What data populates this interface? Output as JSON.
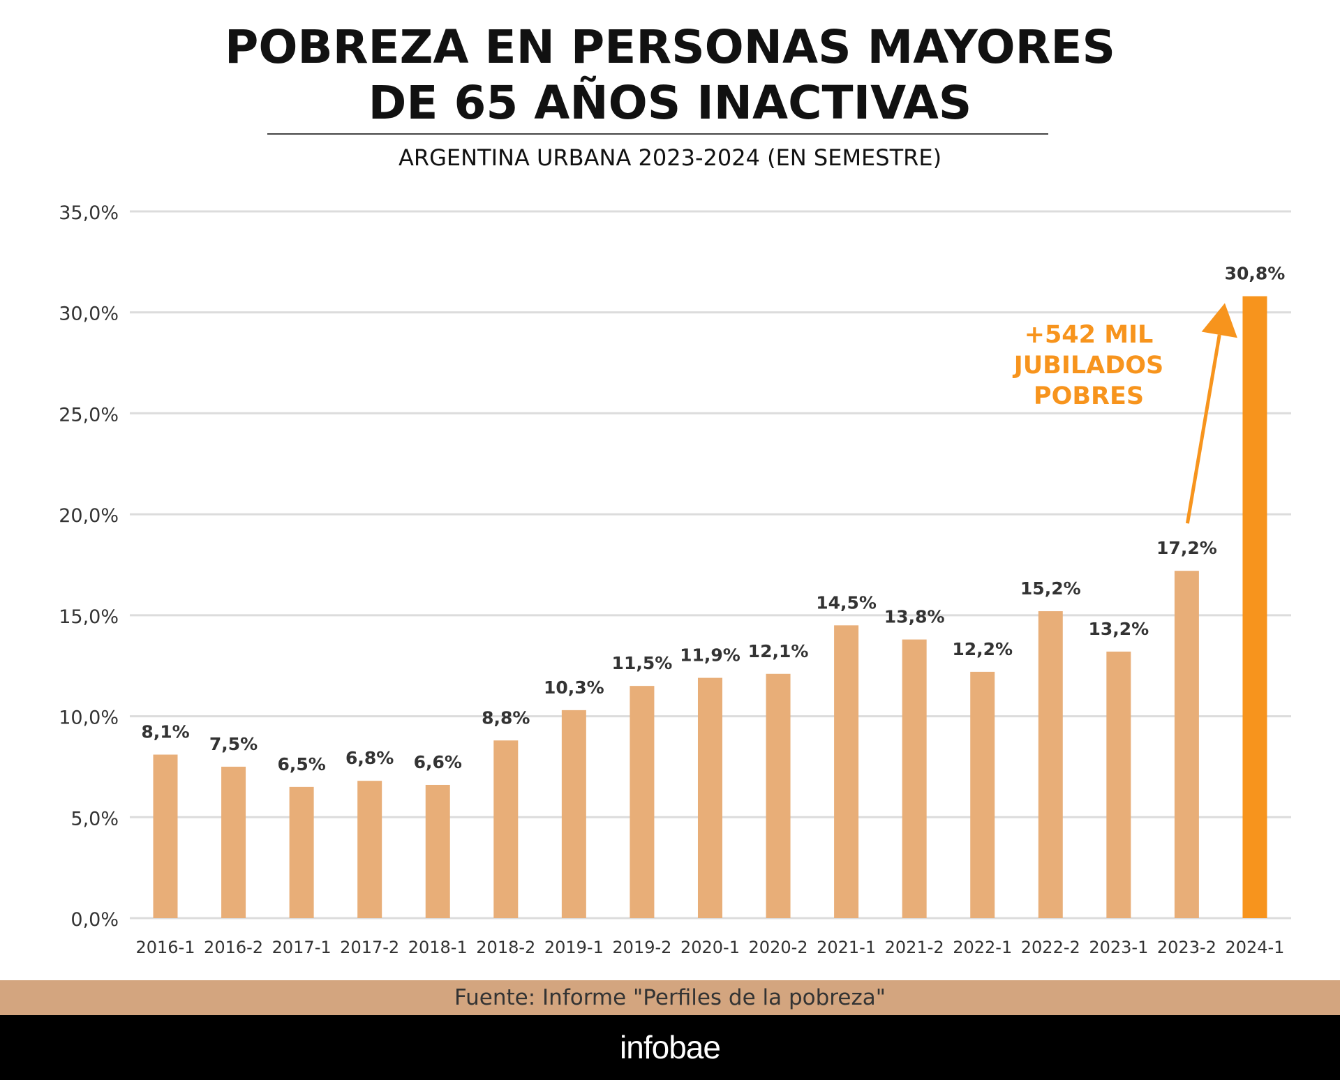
{
  "header": {
    "title_lines": [
      "POBREZA EN PERSONAS MAYORES",
      "DE 65 AÑOS INACTIVAS"
    ],
    "subtitle": "ARGENTINA URBANA 2023-2024 (EN SEMESTRE)"
  },
  "colors": {
    "bar": "#E8AE78",
    "highlight_bar": "#F7941D",
    "annotation": "#F7941D",
    "grid": "#DCDCDC",
    "label": "#333333",
    "source_band": "#D3A57F",
    "footer": "#000000"
  },
  "chart_data": {
    "type": "bar",
    "title": "POBREZA EN PERSONAS MAYORES DE 65 AÑOS INACTIVAS",
    "subtitle": "ARGENTINA URBANA 2023-2024 (EN SEMESTRE)",
    "xlabel": "",
    "ylabel": "",
    "categories": [
      "2016-1",
      "2016-2",
      "2017-1",
      "2017-2",
      "2018-1",
      "2018-2",
      "2019-1",
      "2019-2",
      "2020-1",
      "2020-2",
      "2021-1",
      "2021-2",
      "2022-1",
      "2022-2",
      "2023-1",
      "2023-2",
      "2024-1"
    ],
    "values": [
      8.1,
      7.5,
      6.5,
      6.8,
      6.6,
      8.8,
      10.3,
      11.5,
      11.9,
      12.1,
      14.5,
      13.8,
      12.2,
      15.2,
      13.2,
      17.2,
      30.8
    ],
    "data_labels": [
      "8,1%",
      "7,5%",
      "6,5%",
      "6,8%",
      "6,6%",
      "8,8%",
      "10,3%",
      "11,5%",
      "11,9%",
      "12,1%",
      "14,5%",
      "13,8%",
      "12,2%",
      "15,2%",
      "13,2%",
      "17,2%",
      "30,8%"
    ],
    "highlight_index": 16,
    "ylim": [
      0,
      35
    ],
    "yticks": [
      0,
      5,
      10,
      15,
      20,
      25,
      30,
      35
    ],
    "ytick_labels": [
      "0,0%",
      "5,0%",
      "10,0%",
      "15,0%",
      "20,0%",
      "25,0%",
      "30,0%",
      "35,0%"
    ],
    "grid": true,
    "legend": "none",
    "annotation": {
      "lines": [
        "+542 MIL",
        "JUBILADOS",
        "POBRES"
      ],
      "arrow_from_category": "2023-2",
      "arrow_to_category": "2024-1"
    }
  },
  "footer": {
    "source": "Fuente: Informe \"Perfiles de la pobreza\"",
    "logo": "infobae"
  }
}
